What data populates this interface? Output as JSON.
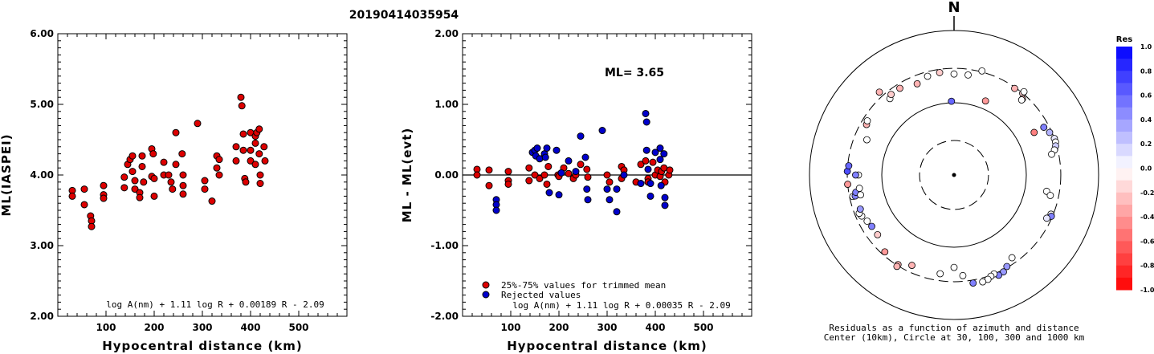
{
  "event_id": "20190414035954",
  "panels": {
    "left": {
      "ylabel": "ML(IASPEI)",
      "xlabel": "Hypocentral distance (km)",
      "formula": "log A(nm) + 1.11 log R + 0.00189 R - 2.09"
    },
    "middle": {
      "ylabel": "ML - ML(evt)",
      "xlabel": "Hypocentral distance (km)",
      "ml_text": "ML= 3.65",
      "formula": "log A(nm) + 1.11 log R + 0.00035 R - 2.09",
      "legend": [
        "25%-75% values for trimmed mean",
        "Rejected values"
      ]
    },
    "right": {
      "north_label": "N",
      "caption_1": "Residuals as a function of azimuth and distance",
      "caption_2": "Center (10km), Circle at 30, 100, 300 and 1000 km",
      "colorbar_title": "Res"
    }
  },
  "colors": {
    "accepted": "#dd0000",
    "rejected": "#0000cc",
    "neg_residual": "#ff0000",
    "pos_residual": "#0000ff"
  },
  "chart_data": [
    {
      "type": "scatter",
      "name": "ML vs distance",
      "xlabel": "Hypocentral distance (km)",
      "ylabel": "ML(IASPEI)",
      "xlim": [
        0,
        600
      ],
      "ylim": [
        2.0,
        6.0
      ],
      "x_ticks": [
        100,
        200,
        300,
        400,
        500
      ],
      "y_ticks": [
        "2.00",
        "3.00",
        "4.00",
        "5.00",
        "6.00"
      ],
      "points": [
        [
          30,
          3.78
        ],
        [
          30,
          3.7
        ],
        [
          55,
          3.8
        ],
        [
          55,
          3.58
        ],
        [
          68,
          3.42
        ],
        [
          70,
          3.35
        ],
        [
          70,
          3.27
        ],
        [
          95,
          3.85
        ],
        [
          95,
          3.72
        ],
        [
          95,
          3.67
        ],
        [
          138,
          3.97
        ],
        [
          138,
          3.82
        ],
        [
          145,
          4.15
        ],
        [
          150,
          4.22
        ],
        [
          155,
          4.27
        ],
        [
          155,
          4.05
        ],
        [
          160,
          3.92
        ],
        [
          160,
          3.8
        ],
        [
          170,
          3.75
        ],
        [
          170,
          3.68
        ],
        [
          175,
          4.27
        ],
        [
          175,
          4.12
        ],
        [
          178,
          3.9
        ],
        [
          195,
          4.37
        ],
        [
          195,
          3.98
        ],
        [
          198,
          4.3
        ],
        [
          200,
          3.95
        ],
        [
          200,
          3.7
        ],
        [
          220,
          4.18
        ],
        [
          220,
          4.0
        ],
        [
          230,
          4.0
        ],
        [
          235,
          3.9
        ],
        [
          238,
          3.8
        ],
        [
          245,
          4.6
        ],
        [
          245,
          4.15
        ],
        [
          258,
          4.3
        ],
        [
          260,
          4.0
        ],
        [
          260,
          3.85
        ],
        [
          260,
          3.73
        ],
        [
          290,
          4.73
        ],
        [
          305,
          3.92
        ],
        [
          305,
          3.8
        ],
        [
          320,
          3.63
        ],
        [
          330,
          4.27
        ],
        [
          330,
          4.1
        ],
        [
          335,
          4.22
        ],
        [
          335,
          4.0
        ],
        [
          370,
          4.4
        ],
        [
          370,
          4.2
        ],
        [
          380,
          5.1
        ],
        [
          382,
          4.98
        ],
        [
          385,
          4.58
        ],
        [
          385,
          4.35
        ],
        [
          388,
          3.95
        ],
        [
          390,
          3.9
        ],
        [
          400,
          4.6
        ],
        [
          400,
          4.35
        ],
        [
          400,
          4.2
        ],
        [
          410,
          4.55
        ],
        [
          410,
          4.45
        ],
        [
          410,
          4.15
        ],
        [
          413,
          4.6
        ],
        [
          418,
          4.65
        ],
        [
          418,
          4.3
        ],
        [
          420,
          4.0
        ],
        [
          420,
          3.88
        ],
        [
          428,
          4.4
        ],
        [
          430,
          4.2
        ]
      ]
    },
    {
      "type": "scatter",
      "name": "ML residuals vs distance",
      "xlabel": "Hypocentral distance (km)",
      "ylabel": "ML - ML(evt)",
      "xlim": [
        0,
        600
      ],
      "ylim": [
        -2.0,
        2.0
      ],
      "x_ticks": [
        100,
        200,
        300,
        400,
        500
      ],
      "y_ticks": [
        "-2.00",
        "-1.00",
        "0.00",
        "1.00",
        "2.00"
      ],
      "series": [
        {
          "name": "25%-75% values for trimmed mean",
          "points": [
            [
              30,
              0.08
            ],
            [
              30,
              0.0
            ],
            [
              55,
              0.07
            ],
            [
              55,
              -0.15
            ],
            [
              95,
              0.05
            ],
            [
              95,
              -0.08
            ],
            [
              95,
              -0.13
            ],
            [
              138,
              0.1
            ],
            [
              138,
              -0.08
            ],
            [
              150,
              0.0
            ],
            [
              160,
              -0.05
            ],
            [
              170,
              0.0
            ],
            [
              175,
              -0.13
            ],
            [
              178,
              0.12
            ],
            [
              198,
              0.0
            ],
            [
              200,
              -0.02
            ],
            [
              210,
              0.1
            ],
            [
              220,
              0.02
            ],
            [
              230,
              -0.05
            ],
            [
              235,
              0.0
            ],
            [
              245,
              0.15
            ],
            [
              258,
              0.08
            ],
            [
              260,
              -0.03
            ],
            [
              300,
              0.0
            ],
            [
              305,
              -0.1
            ],
            [
              330,
              0.12
            ],
            [
              335,
              0.07
            ],
            [
              330,
              -0.05
            ],
            [
              360,
              -0.1
            ],
            [
              370,
              0.15
            ],
            [
              380,
              0.2
            ],
            [
              385,
              -0.05
            ],
            [
              385,
              -0.1
            ],
            [
              395,
              0.18
            ],
            [
              400,
              0.0
            ],
            [
              405,
              0.07
            ],
            [
              410,
              -0.02
            ],
            [
              413,
              0.05
            ],
            [
              418,
              0.1
            ],
            [
              420,
              -0.1
            ],
            [
              428,
              0.0
            ],
            [
              430,
              0.07
            ]
          ]
        },
        {
          "name": "Rejected values",
          "points": [
            [
              70,
              -0.35
            ],
            [
              70,
              -0.42
            ],
            [
              70,
              -0.5
            ],
            [
              145,
              0.32
            ],
            [
              150,
              0.35
            ],
            [
              152,
              0.27
            ],
            [
              155,
              0.38
            ],
            [
              160,
              0.23
            ],
            [
              170,
              0.3
            ],
            [
              172,
              0.25
            ],
            [
              175,
              0.38
            ],
            [
              180,
              -0.25
            ],
            [
              195,
              0.35
            ],
            [
              200,
              -0.28
            ],
            [
              205,
              0.03
            ],
            [
              220,
              0.2
            ],
            [
              235,
              0.05
            ],
            [
              245,
              0.55
            ],
            [
              255,
              0.25
            ],
            [
              258,
              -0.2
            ],
            [
              260,
              -0.35
            ],
            [
              290,
              0.63
            ],
            [
              300,
              -0.2
            ],
            [
              305,
              -0.35
            ],
            [
              320,
              -0.2
            ],
            [
              320,
              -0.52
            ],
            [
              335,
              0.0
            ],
            [
              370,
              -0.12
            ],
            [
              380,
              0.87
            ],
            [
              382,
              0.75
            ],
            [
              382,
              0.35
            ],
            [
              385,
              0.08
            ],
            [
              390,
              -0.12
            ],
            [
              390,
              -0.3
            ],
            [
              400,
              0.32
            ],
            [
              410,
              0.38
            ],
            [
              410,
              0.22
            ],
            [
              412,
              -0.15
            ],
            [
              418,
              0.3
            ],
            [
              420,
              -0.32
            ],
            [
              420,
              -0.43
            ]
          ]
        }
      ]
    },
    {
      "type": "scatter",
      "name": "Residuals vs azimuth and distance",
      "coordinates": "polar",
      "distance_scale": "log",
      "rings_km": [
        30,
        100,
        300,
        1000
      ],
      "center_km": 10,
      "point_fields": [
        "azimuth_deg",
        "distance_km",
        "residual"
      ],
      "points": [
        [
          0,
          250,
          0.0
        ],
        [
          358,
          105,
          0.6
        ],
        [
          8,
          250,
          0.0
        ],
        [
          15,
          310,
          0.0
        ],
        [
          23,
          130,
          -0.4
        ],
        [
          35,
          290,
          -0.3
        ],
        [
          40,
          300,
          -0.2
        ],
        [
          42,
          260,
          -0.3
        ],
        [
          42,
          250,
          0.0
        ],
        [
          40,
          320,
          0.0
        ],
        [
          62,
          255,
          0.5
        ],
        [
          66,
          280,
          0.3
        ],
        [
          70,
          300,
          0.1
        ],
        [
          72,
          300,
          0.0
        ],
        [
          74,
          290,
          0.2
        ],
        [
          76,
          270,
          0.0
        ],
        [
          78,
          240,
          0.0
        ],
        [
          62,
          180,
          -0.5
        ],
        [
          100,
          200,
          0.0
        ],
        [
          102,
          230,
          0.0
        ],
        [
          112,
          280,
          0.0
        ],
        [
          113,
          290,
          0.5
        ],
        [
          115,
          260,
          0.1
        ],
        [
          145,
          250,
          0.0
        ],
        [
          150,
          290,
          0.4
        ],
        [
          153,
          320,
          0.4
        ],
        [
          156,
          330,
          0.5
        ],
        [
          158,
          300,
          0.0
        ],
        [
          160,
          310,
          0.0
        ],
        [
          162,
          330,
          0.0
        ],
        [
          165,
          340,
          0.0
        ],
        [
          170,
          330,
          0.5
        ],
        [
          175,
          250,
          0.0
        ],
        [
          180,
          190,
          0.0
        ],
        [
          188,
          240,
          0.0
        ],
        [
          205,
          240,
          -0.3
        ],
        [
          212,
          290,
          -0.3
        ],
        [
          212,
          310,
          -0.3
        ],
        [
          222,
          270,
          -0.4
        ],
        [
          232,
          220,
          -0.2
        ],
        [
          238,
          220,
          0.5
        ],
        [
          242,
          230,
          0.0
        ],
        [
          246,
          250,
          0.0
        ],
        [
          248,
          260,
          0.0
        ],
        [
          250,
          240,
          0.4
        ],
        [
          258,
          270,
          0.0
        ],
        [
          258,
          250,
          0.5
        ],
        [
          260,
          240,
          0.5
        ],
        [
          262,
          210,
          0.0
        ],
        [
          265,
          300,
          -0.4
        ],
        [
          270,
          210,
          0.0
        ],
        [
          270,
          230,
          0.5
        ],
        [
          272,
          300,
          0.7
        ],
        [
          275,
          290,
          0.6
        ],
        [
          292,
          200,
          0.0
        ],
        [
          300,
          250,
          -0.3
        ],
        [
          318,
          350,
          -0.3
        ],
        [
          320,
          240,
          0.0
        ],
        [
          322,
          260,
          -0.2
        ],
        [
          338,
          230,
          -0.3
        ],
        [
          328,
          260,
          -0.3
        ],
        [
          345,
          260,
          0.0
        ],
        [
          352,
          270,
          -0.2
        ],
        [
          302,
          260,
          0.0
        ],
        [
          258,
          210,
          0.0
        ]
      ]
    }
  ],
  "colorbar": {
    "title": "Res",
    "min": -1.0,
    "max": 1.0,
    "tick_labels": [
      "1.0",
      "0.8",
      "0.6",
      "0.4",
      "0.2",
      "0.0",
      "-0.2",
      "-0.4",
      "-0.6",
      "-0.8",
      "-1.0"
    ]
  }
}
